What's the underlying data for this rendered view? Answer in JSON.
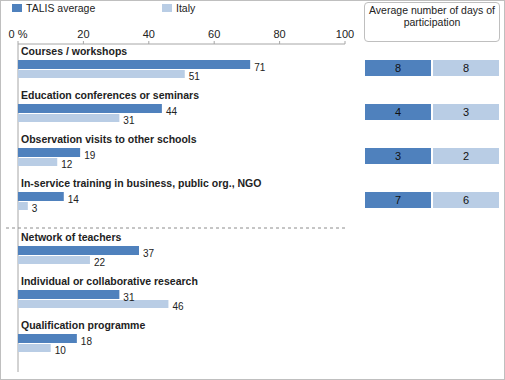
{
  "chart_data": {
    "type": "bar",
    "orientation": "horizontal",
    "categories": [
      "Courses / workshops",
      "Education conferences or seminars",
      "Observation visits to other schools",
      "In-service training in business, public org., NGO",
      "Network of teachers",
      "Individual or collaborative research",
      "Qualification programme"
    ],
    "series": [
      {
        "name": "TALIS average",
        "color": "#4f81bd",
        "values": [
          71,
          44,
          19,
          14,
          37,
          31,
          18
        ],
        "days": [
          8,
          4,
          3,
          7,
          null,
          null,
          null
        ]
      },
      {
        "name": "Italy",
        "color": "#b9cde5",
        "values": [
          51,
          31,
          12,
          3,
          22,
          46,
          10
        ],
        "days": [
          8,
          3,
          2,
          6,
          null,
          null,
          null
        ]
      }
    ],
    "days_title": "Average number of days of participation",
    "xlim": [
      0,
      100
    ],
    "xticks": [
      {
        "value": 0,
        "label": "0 %"
      },
      20,
      40,
      60,
      80,
      100
    ],
    "grid": false,
    "legend": "top",
    "data_labels": true
  }
}
